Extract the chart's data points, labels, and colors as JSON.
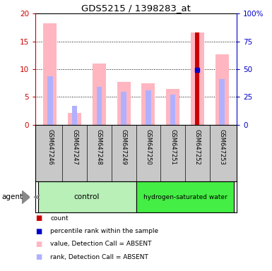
{
  "title": "GDS5215 / 1398283_at",
  "samples": [
    "GSM647246",
    "GSM647247",
    "GSM647248",
    "GSM647249",
    "GSM647250",
    "GSM647251",
    "GSM647252",
    "GSM647253"
  ],
  "value_absent": [
    18.3,
    2.1,
    11.0,
    7.7,
    7.5,
    6.4,
    16.6,
    12.7
  ],
  "rank_absent": [
    8.7,
    3.4,
    6.8,
    5.9,
    6.2,
    5.4,
    null,
    8.2
  ],
  "count_value": [
    null,
    null,
    null,
    null,
    null,
    null,
    16.6,
    null
  ],
  "percentile_rank": [
    null,
    null,
    null,
    null,
    null,
    null,
    9.8,
    null
  ],
  "ylim_left": [
    0,
    20
  ],
  "ylim_right": [
    0,
    100
  ],
  "yticks_left": [
    0,
    5,
    10,
    15,
    20
  ],
  "yticks_right": [
    0,
    25,
    50,
    75,
    100
  ],
  "ytick_labels_right": [
    "0",
    "25",
    "50",
    "75",
    "100%"
  ],
  "color_value_absent": "#ffb6c1",
  "color_rank_absent": "#b0b0ff",
  "color_count": "#cc0000",
  "color_percentile": "#0000cc",
  "left_tick_color": "#cc0000",
  "right_tick_color": "#0000cc",
  "bg_plot": "#ffffff",
  "bg_samples": "#c8c8c8",
  "control_bg": "#b8f0b8",
  "hsw_bg": "#44ee44",
  "n_control": 4,
  "n_hsw": 4,
  "legend_items": [
    {
      "color": "#cc0000",
      "label": "count"
    },
    {
      "color": "#0000cc",
      "label": "percentile rank within the sample"
    },
    {
      "color": "#ffb6c1",
      "label": "value, Detection Call = ABSENT"
    },
    {
      "color": "#b0b0ff",
      "label": "rank, Detection Call = ABSENT"
    }
  ]
}
